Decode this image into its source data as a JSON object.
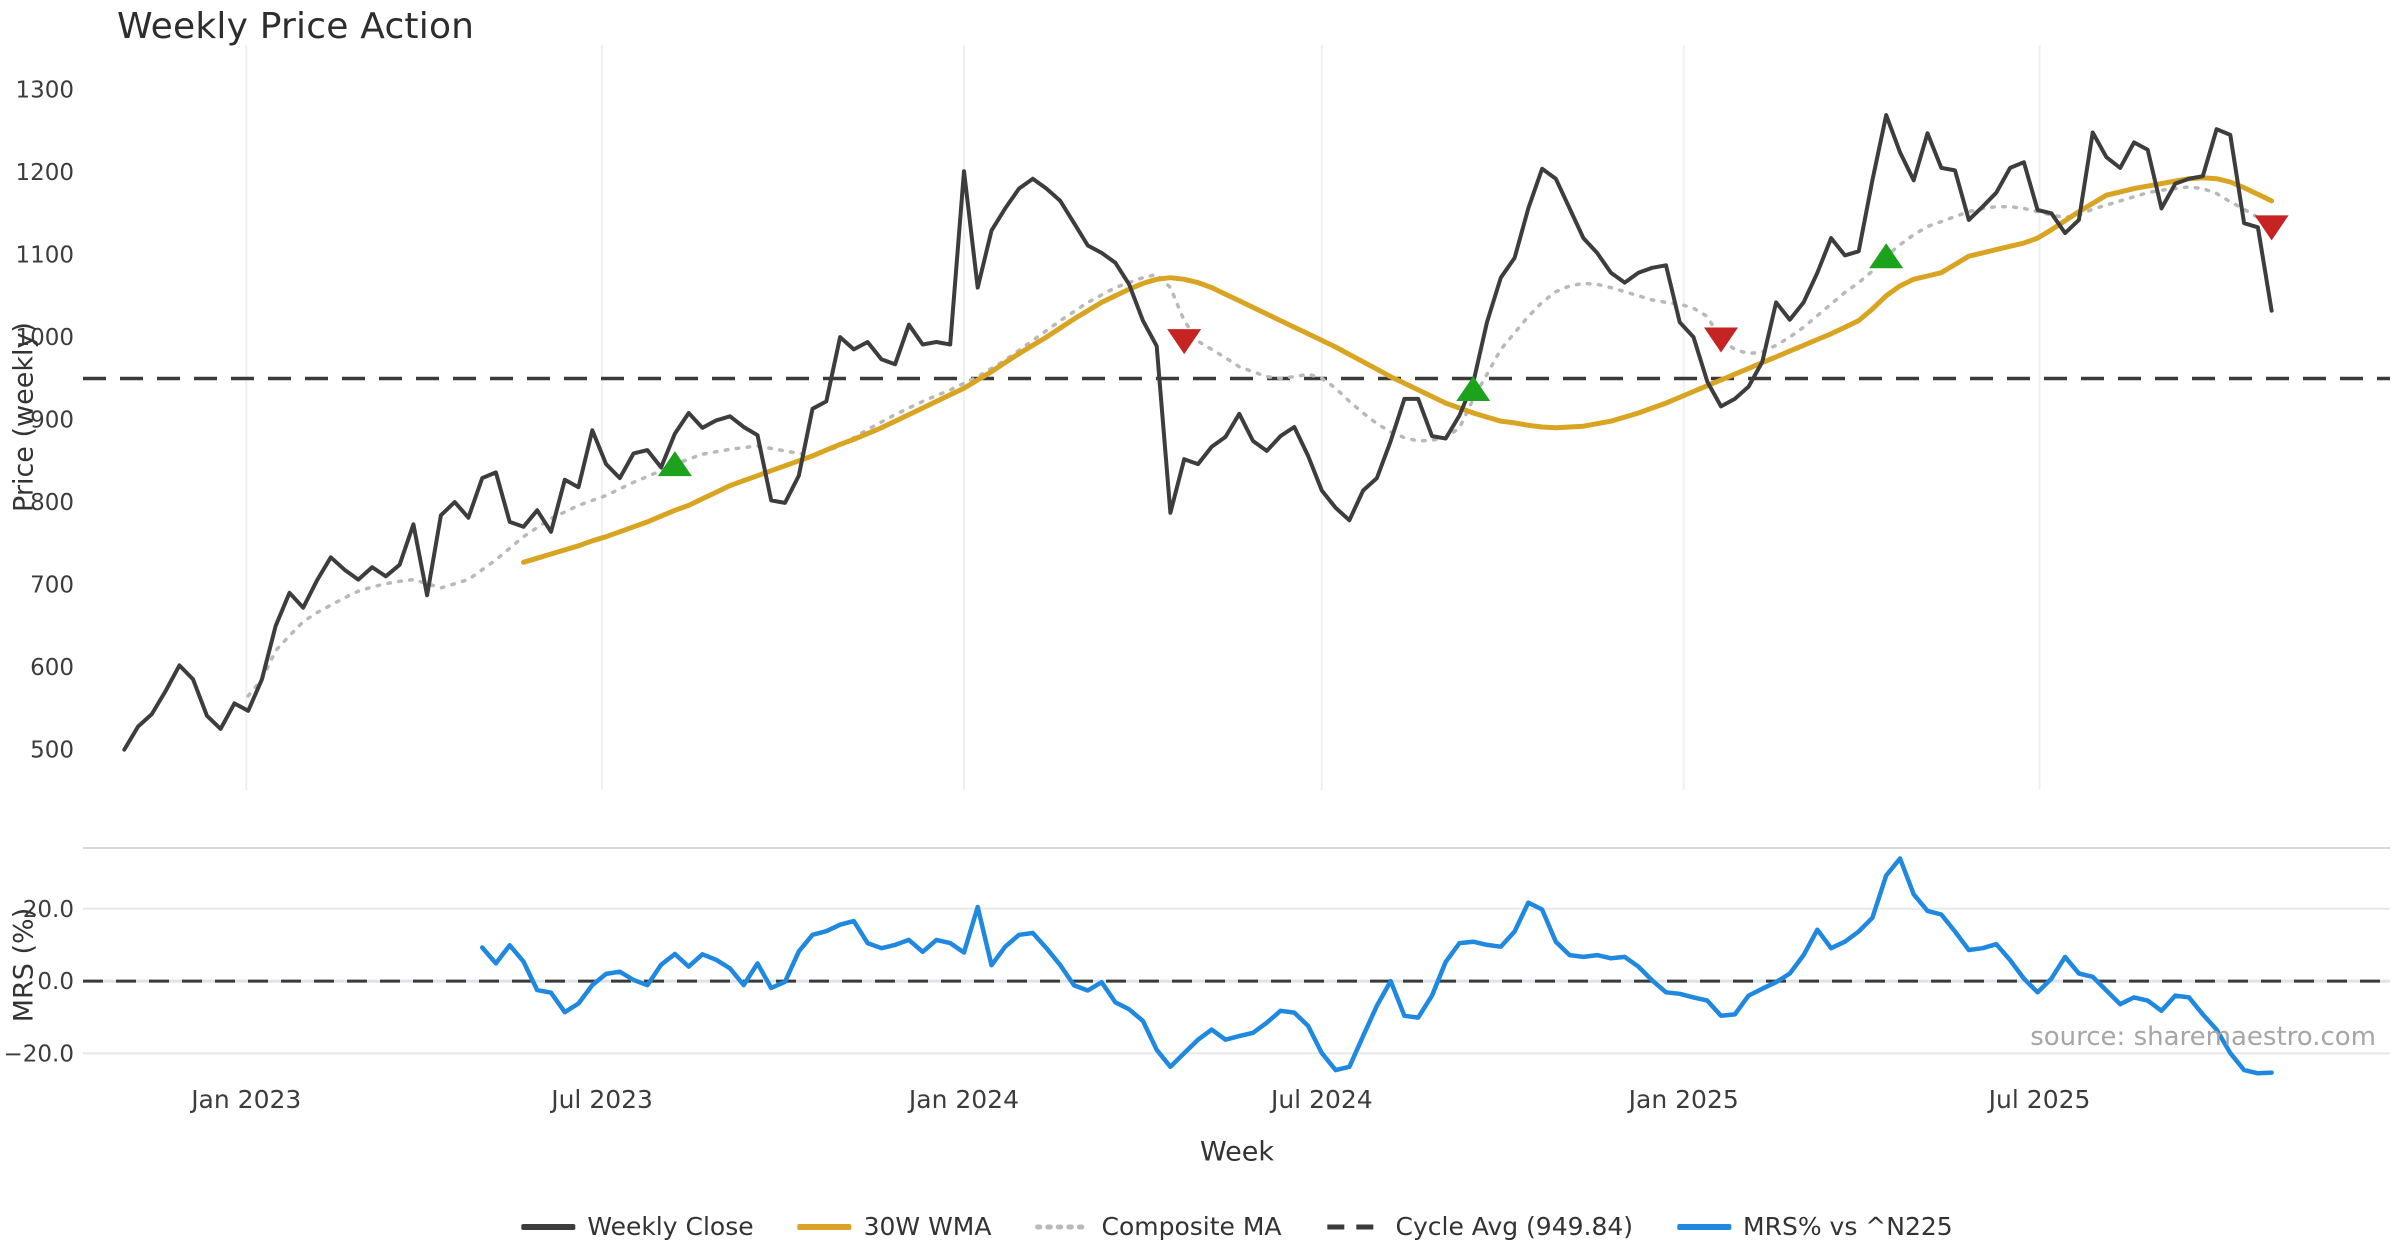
{
  "source_note": "source: sharemaestro.com",
  "colors": {
    "weekly_close": "#3d3d3d",
    "wma": "#d9a422",
    "composite": "#b9b9b9",
    "cycle_avg": "#3a3a3a",
    "mrs": "#1f88e0",
    "buy": "#1da21d",
    "sell": "#c62323",
    "grid_vertical": "#edf0f4",
    "grid_horizontal": "#e8e8e8",
    "panel_border": "#d9d9d9",
    "zero_line": "#dde3ed",
    "tick_text": "#3c3c3c"
  },
  "legend": {
    "items": [
      {
        "label": "Weekly Close",
        "color": "#3d3d3d",
        "style": "solid"
      },
      {
        "label": "30W WMA",
        "color": "#d9a422",
        "style": "solid"
      },
      {
        "label": "Composite MA",
        "color": "#b9b9b9",
        "style": "dotted"
      },
      {
        "label": "Cycle Avg (949.84)",
        "color": "#3a3a3a",
        "style": "dashed"
      },
      {
        "label": "MRS% vs ^N225",
        "color": "#1f88e0",
        "style": "solid"
      }
    ]
  },
  "chart_data": {
    "type": "line",
    "title": "Weekly Price Action",
    "x_axis": {
      "label": "Week",
      "unit": "weekly index from first data point (late Oct 2022)",
      "range": [
        -3,
        164.6
      ],
      "ticks": [
        {
          "pos": 8.86,
          "label": "Jan 2023"
        },
        {
          "pos": 34.71,
          "label": "Jul 2023"
        },
        {
          "pos": 61.0,
          "label": "Jan 2024"
        },
        {
          "pos": 87.0,
          "label": "Jul 2024"
        },
        {
          "pos": 113.29,
          "label": "Jan 2025"
        },
        {
          "pos": 139.14,
          "label": "Jul 2025"
        }
      ]
    },
    "price_panel": {
      "ylabel": "Price (weekly)",
      "ylim": [
        451,
        1354
      ],
      "yticks": [
        500,
        600,
        700,
        800,
        900,
        1000,
        1100,
        1200,
        1300
      ],
      "cycle_avg": 949.84,
      "series": [
        {
          "name": "Weekly Close",
          "start_index": 0,
          "values": [
            500,
            528,
            543,
            571,
            602,
            585,
            541,
            525,
            556,
            547,
            585,
            650,
            690,
            672,
            705,
            733,
            718,
            706,
            721,
            710,
            724,
            773,
            687,
            784,
            800,
            781,
            829,
            836,
            776,
            770,
            790,
            764,
            827,
            818,
            887,
            846,
            829,
            859,
            863,
            842,
            883,
            908,
            890,
            899,
            904,
            891,
            881,
            802,
            799,
            832,
            913,
            922,
            1000,
            985,
            994,
            973,
            967,
            1015,
            991,
            994,
            991,
            1201,
            1060,
            1129,
            1156,
            1180,
            1192,
            1180,
            1165,
            1138,
            1111,
            1102,
            1090,
            1064,
            1020,
            989,
            787,
            852,
            846,
            867,
            879,
            907,
            874,
            862,
            880,
            891,
            856,
            814,
            793,
            778,
            814,
            829,
            874,
            925,
            925,
            880,
            877,
            905,
            945,
            1018,
            1072,
            1096,
            1156,
            1204,
            1192,
            1156,
            1120,
            1102,
            1078,
            1066,
            1078,
            1084,
            1087,
            1018,
            1000,
            946,
            916,
            925,
            940,
            970,
            1042,
            1021,
            1042,
            1078,
            1120,
            1099,
            1104,
            1190,
            1269,
            1224,
            1190,
            1247,
            1205,
            1202,
            1142,
            1158,
            1175,
            1205,
            1212,
            1154,
            1150,
            1126,
            1142,
            1248,
            1218,
            1205,
            1236,
            1227,
            1156,
            1186,
            1192,
            1195,
            1252,
            1245,
            1138,
            1133,
            1032
          ]
        },
        {
          "name": "30W WMA",
          "start_index": 29,
          "values": [
            727,
            732,
            737,
            742,
            747,
            753,
            758,
            764,
            770,
            776,
            783,
            790,
            796,
            804,
            812,
            820,
            826,
            832,
            838,
            844,
            850,
            856,
            863,
            870,
            876,
            883,
            890,
            898,
            906,
            914,
            922,
            930,
            938,
            948,
            958,
            969,
            980,
            990,
            1000,
            1011,
            1022,
            1032,
            1042,
            1050,
            1058,
            1065,
            1070,
            1072,
            1070,
            1066,
            1060,
            1052,
            1044,
            1036,
            1028,
            1020,
            1012,
            1004,
            996,
            988,
            979,
            970,
            961,
            952,
            944,
            936,
            928,
            920,
            914,
            908,
            903,
            898,
            896,
            893,
            891,
            890,
            891,
            892,
            895,
            898,
            903,
            908,
            914,
            920,
            927,
            934,
            941,
            948,
            955,
            962,
            969,
            976,
            983,
            990,
            997,
            1004,
            1012,
            1020,
            1034,
            1050,
            1062,
            1070,
            1074,
            1078,
            1088,
            1098,
            1102,
            1106,
            1110,
            1114,
            1120,
            1130,
            1141,
            1152,
            1162,
            1172,
            1176,
            1180,
            1183,
            1186,
            1189,
            1192,
            1193,
            1192,
            1188,
            1181,
            1173,
            1165
          ]
        },
        {
          "name": "Composite MA",
          "start_index": 9,
          "values": [
            565,
            585,
            620,
            638,
            655,
            666,
            675,
            684,
            692,
            697,
            701,
            704,
            706,
            701,
            696,
            701,
            706,
            718,
            730,
            744,
            758,
            769,
            780,
            788,
            796,
            802,
            808,
            816,
            824,
            831,
            838,
            846,
            852,
            858,
            861,
            864,
            866,
            868,
            865,
            862,
            859,
            856,
            862,
            868,
            878,
            888,
            897,
            906,
            914,
            922,
            929,
            936,
            944,
            952,
            962,
            972,
            984,
            996,
            1008,
            1020,
            1031,
            1042,
            1051,
            1060,
            1066,
            1072,
            1076,
            1060,
            1020,
            995,
            985,
            975,
            964,
            958,
            952,
            950,
            952,
            955,
            950,
            938,
            922,
            908,
            895,
            885,
            878,
            874,
            875,
            878,
            890,
            925,
            955,
            985,
            1005,
            1025,
            1042,
            1055,
            1062,
            1065,
            1064,
            1060,
            1055,
            1050,
            1045,
            1042,
            1040,
            1035,
            1025,
            997,
            985,
            980,
            982,
            990,
            1000,
            1012,
            1026,
            1040,
            1054,
            1066,
            1080,
            1098,
            1112,
            1124,
            1134,
            1140,
            1146,
            1152,
            1156,
            1158,
            1158,
            1156,
            1152,
            1148,
            1145,
            1148,
            1155,
            1160,
            1165,
            1170,
            1175,
            1178,
            1180,
            1182,
            1180,
            1174,
            1164,
            1155,
            1145,
            1133
          ]
        }
      ],
      "signals": [
        {
          "index": 40,
          "value": 846,
          "type": "buy"
        },
        {
          "index": 77,
          "value": 995,
          "type": "sell"
        },
        {
          "index": 98,
          "value": 937,
          "type": "buy"
        },
        {
          "index": 116,
          "value": 997,
          "type": "sell"
        },
        {
          "index": 128,
          "value": 1098,
          "type": "buy"
        },
        {
          "index": 156,
          "value": 1133,
          "type": "sell"
        }
      ]
    },
    "mrs_panel": {
      "ylabel": "MRS (%)",
      "ylim": [
        -27.9,
        36.8
      ],
      "yticks": [
        {
          "value": 20,
          "label": "20.0"
        },
        {
          "value": 0,
          "label": "0.0"
        },
        {
          "value": -20,
          "label": "−20.0"
        }
      ],
      "zero_dashed_line": 0,
      "series": [
        {
          "name": "MRS% vs ^N225",
          "start_index": 26,
          "values": [
            9.3,
            4.9,
            9.9,
            5.4,
            -2.5,
            -3.2,
            -8.6,
            -6.2,
            -1.1,
            2.0,
            2.6,
            0.3,
            -1.1,
            4.5,
            7.5,
            4.0,
            7.4,
            5.9,
            3.5,
            -1.1,
            4.9,
            -1.9,
            -0.2,
            8.2,
            12.8,
            13.8,
            15.6,
            16.6,
            10.5,
            9.1,
            10.0,
            11.4,
            8.1,
            11.4,
            10.5,
            7.9,
            20.5,
            4.4,
            9.5,
            12.8,
            13.3,
            9.1,
            4.4,
            -1.2,
            -2.6,
            -0.3,
            -5.9,
            -7.8,
            -11.0,
            -19.0,
            -23.7,
            -19.9,
            -16.2,
            -13.4,
            -16.2,
            -15.2,
            -14.3,
            -11.5,
            -8.2,
            -8.7,
            -12.4,
            -19.9,
            -24.6,
            -23.7,
            -15.2,
            -6.8,
            0.0,
            -9.6,
            -10.1,
            -4.0,
            5.3,
            10.5,
            10.9,
            10.0,
            9.5,
            13.7,
            21.7,
            19.8,
            10.9,
            7.2,
            6.7,
            7.2,
            6.3,
            6.7,
            4.0,
            0.2,
            -3.1,
            -3.5,
            -4.5,
            -5.4,
            -9.6,
            -9.2,
            -4.0,
            -2.1,
            -0.3,
            2.1,
            7.2,
            14.2,
            9.1,
            10.9,
            13.7,
            17.5,
            29.2,
            33.9,
            24.0,
            19.4,
            18.4,
            13.7,
            8.6,
            9.1,
            10.2,
            5.8,
            0.7,
            -3.1,
            0.7,
            6.7,
            2.1,
            1.2,
            -2.6,
            -6.4,
            -4.5,
            -5.4,
            -8.2,
            -4.0,
            -4.5,
            -9.2,
            -13.4,
            -19.9,
            -24.6,
            -25.5,
            -25.3
          ]
        }
      ]
    }
  }
}
